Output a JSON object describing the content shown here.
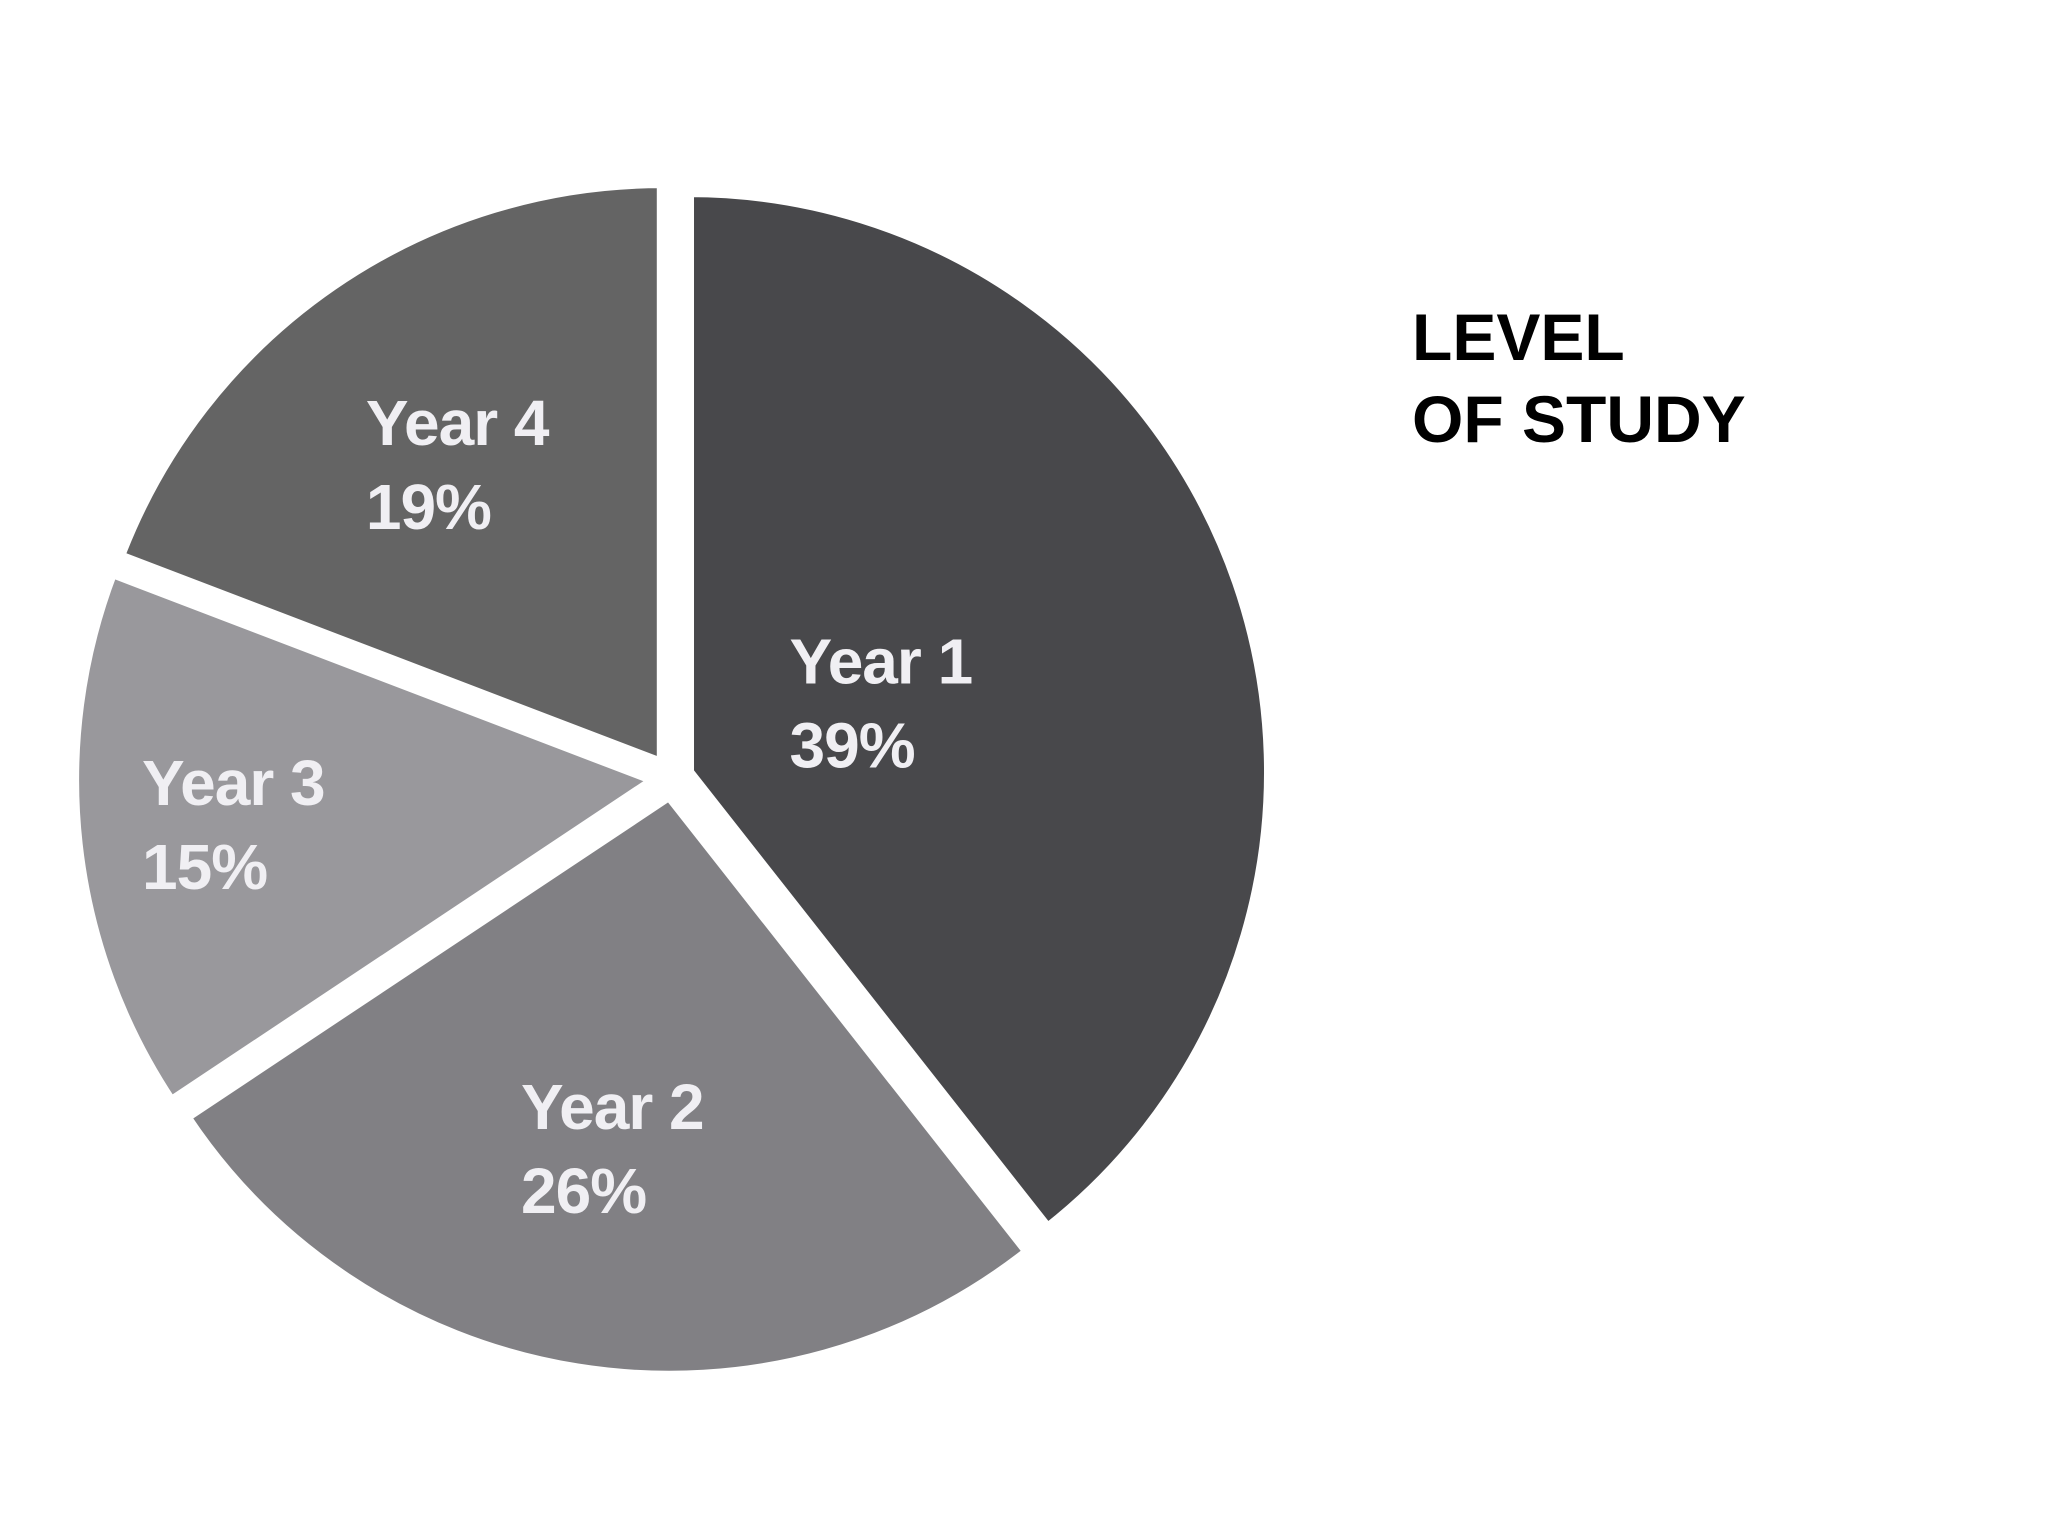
{
  "chart_data": {
    "type": "pie",
    "title_lines": [
      "LEVEL",
      "OF STUDY"
    ],
    "slices": [
      {
        "label": "Year 1",
        "value": 39,
        "value_label": "39%",
        "color": "#48484b",
        "offset": 0.35
      },
      {
        "label": "Year 2",
        "value": 26,
        "value_label": "26%",
        "color": "#818084",
        "offset": 0.62
      },
      {
        "label": "Year 3",
        "value": 15,
        "value_label": "15%",
        "color": "#99989c",
        "offset": 0.73
      },
      {
        "label": "Year 4",
        "value": 19,
        "value_label": "19%",
        "color": "#646464",
        "offset": 0.62
      }
    ],
    "start_angle_deg": 0,
    "direction": "clockwise",
    "label_color": "#f0eff3",
    "separator_color": "#ffffff"
  }
}
